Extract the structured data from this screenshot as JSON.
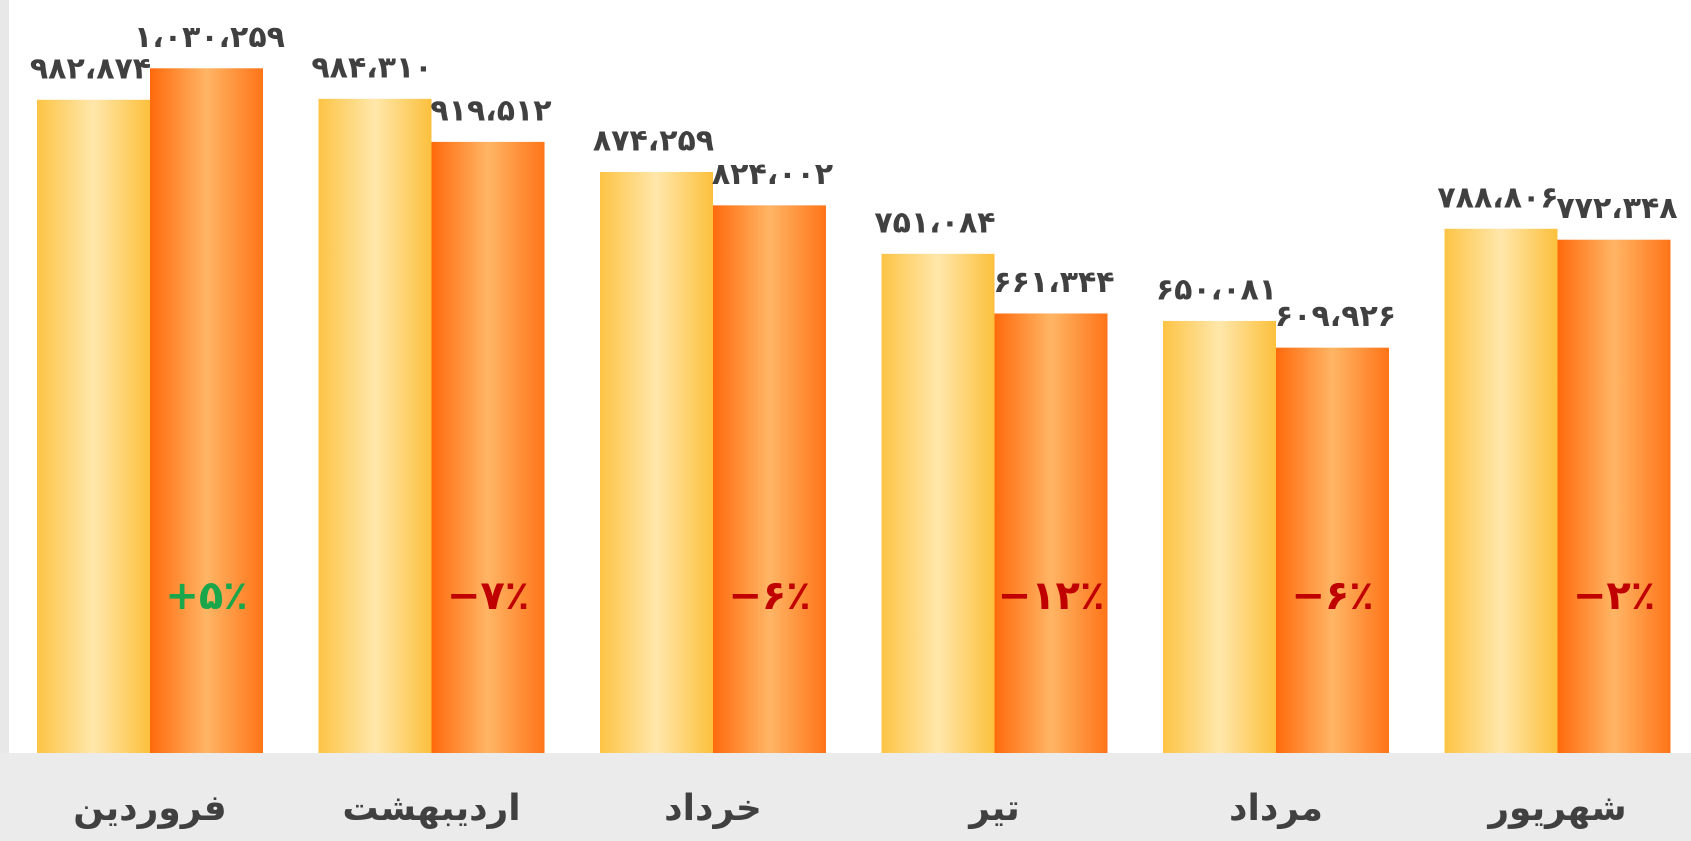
{
  "chart_data": {
    "type": "bar",
    "categories": [
      "فروردین",
      "اردیبهشت",
      "خرداد",
      "تیر",
      "مرداد",
      "شهریور"
    ],
    "series": [
      {
        "color": "#fdc94d",
        "values": [
          982874,
          984310,
          874259,
          751084,
          650081,
          788806
        ],
        "value_labels": [
          "۹۸۲،۸۷۴",
          "۹۸۴،۳۱۰",
          "۸۷۴،۲۵۹",
          "۷۵۱،۰۸۴",
          "۶۵۰،۰۸۱",
          "۷۸۸،۸۰۶"
        ]
      },
      {
        "color": "#ff7010",
        "values": [
          1030259,
          919512,
          824002,
          661344,
          609926,
          772348
        ],
        "value_labels": [
          "۱،۰۳۰،۲۵۹",
          "۹۱۹،۵۱۲",
          "۸۲۴،۰۰۲",
          "۶۶۱،۳۴۴",
          "۶۰۹،۹۲۶",
          "۷۷۲،۳۴۸"
        ]
      }
    ],
    "changes": {
      "values": [
        5,
        -7,
        -6,
        -12,
        -6,
        -2
      ],
      "value_labels": [
        "+۵٪",
        "−۷٪",
        "−۶٪",
        "−۱۲٪",
        "−۶٪",
        "−۲٪"
      ],
      "positive_color": "#1aa64a",
      "negative_color": "#c00000"
    },
    "ylim": [
      0,
      1130000
    ]
  }
}
